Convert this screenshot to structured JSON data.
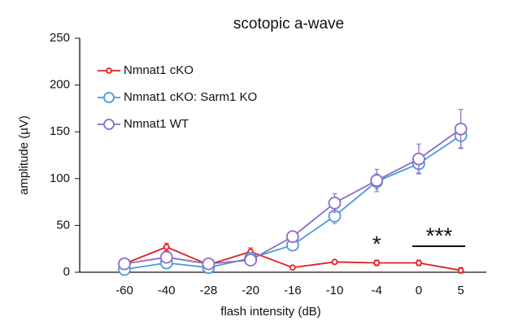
{
  "chart_data": {
    "type": "line",
    "title": "scotopic a-wave",
    "x_label": "flash intensity (dB)",
    "y_label": "amplitude (µV)",
    "categories": [
      "-60",
      "-40",
      "-28",
      "-20",
      "-16",
      "-10",
      "-4",
      "0",
      "5"
    ],
    "ylim": [
      0,
      250
    ],
    "yticks": [
      0,
      50,
      100,
      150,
      200,
      250
    ],
    "grid": false,
    "legend": "top-left",
    "series": [
      {
        "name": "Nmnat1 cKO",
        "color": "#e02020",
        "values": [
          9,
          27,
          8,
          22,
          5,
          11,
          10,
          10,
          2
        ],
        "errors": [
          3,
          4,
          2,
          4,
          2,
          2,
          3,
          3,
          3
        ]
      },
      {
        "name": "Nmnat1 cKO: Sarm1 KO",
        "color": "#4a9ad8",
        "values": [
          3,
          10,
          5,
          15,
          29,
          60,
          97,
          116,
          146
        ],
        "errors": [
          2,
          3,
          2,
          3,
          4,
          8,
          8,
          10,
          13
        ]
      },
      {
        "name": "Nmnat1 WT",
        "color": "#8a6cc4",
        "values": [
          9,
          16,
          9,
          13,
          38,
          74,
          98,
          121,
          153
        ],
        "errors": [
          2,
          3,
          2,
          2,
          4,
          10,
          12,
          16,
          21
        ]
      }
    ],
    "annotations": [
      "*",
      "***"
    ]
  }
}
